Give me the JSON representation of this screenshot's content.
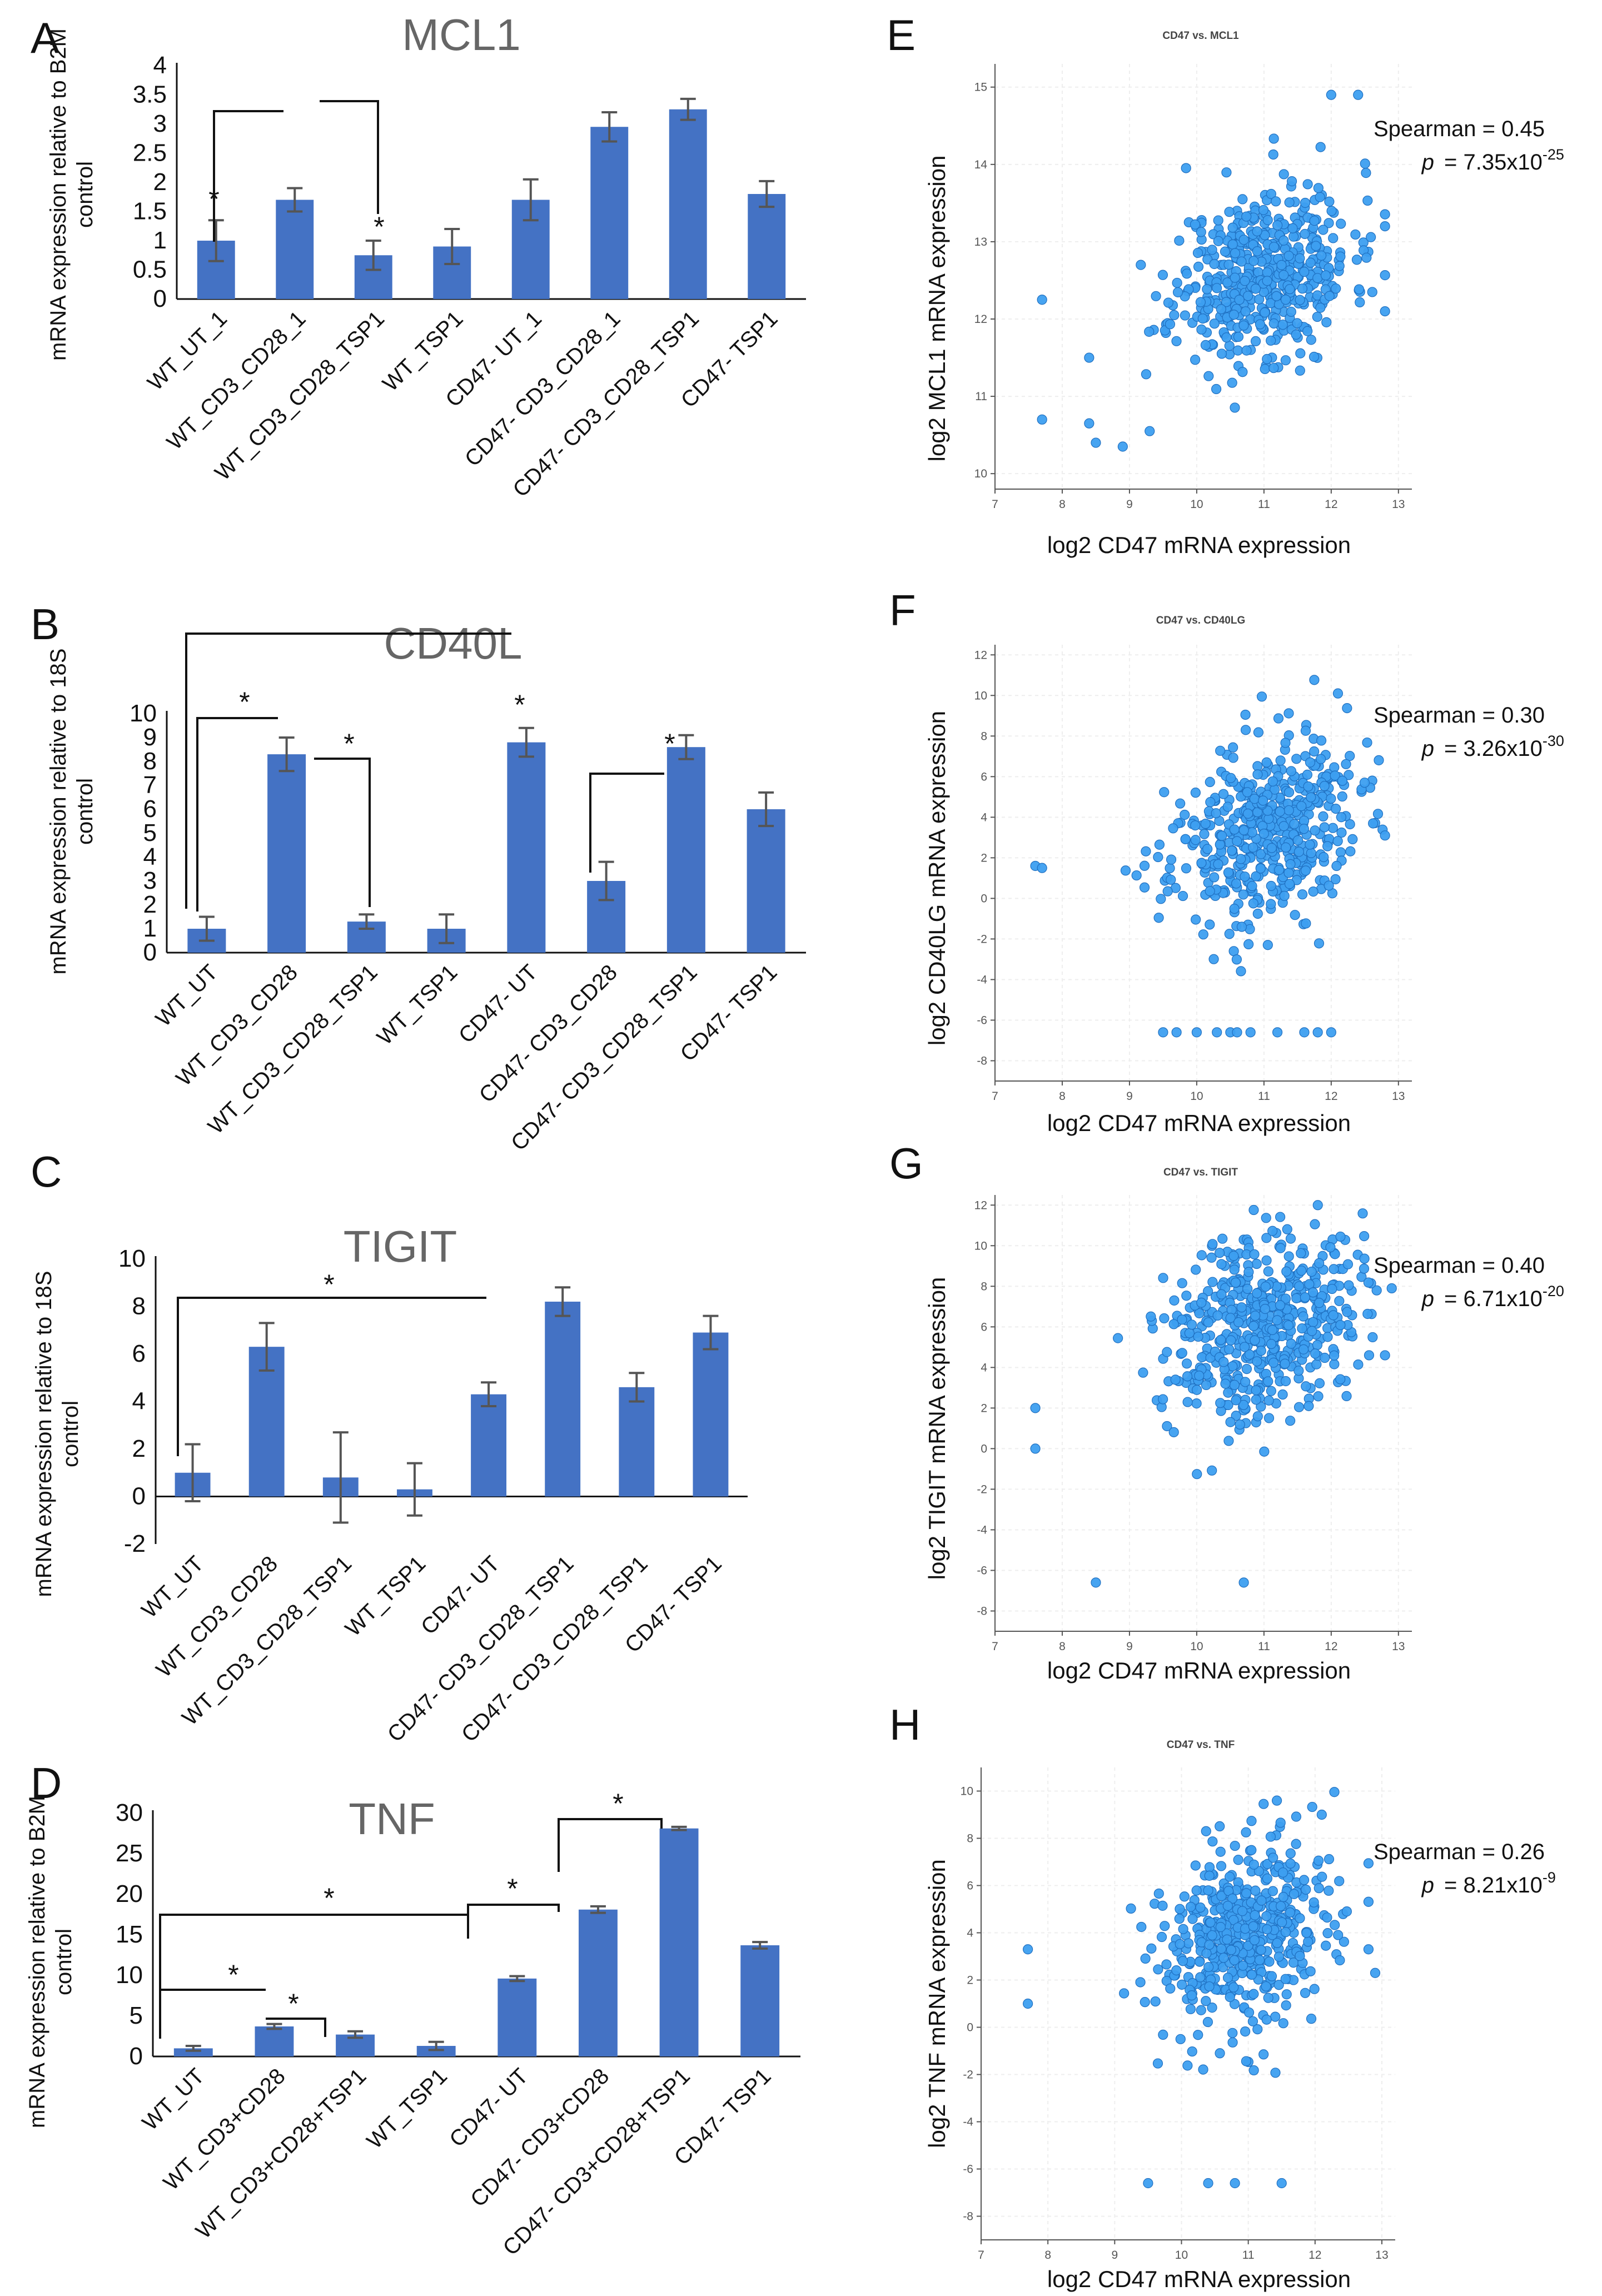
{
  "chart_data": [
    {
      "panel": "A",
      "type": "bar",
      "title": "MCL1",
      "ylabel": "mRNA expression relative to B2M control",
      "ylim": [
        0,
        4
      ],
      "yticks": [
        "0",
        "0.5",
        "1",
        "1.5",
        "2",
        "2.5",
        "3",
        "3.5",
        "4"
      ],
      "categories": [
        "WT_UT_1",
        "WT_CD3_CD28_1",
        "WT_CD3_CD28_TSP1",
        "WT_TSP1",
        "CD47- UT_1",
        "CD47- CD3_CD28_1",
        "CD47- CD3_CD28_TSP1",
        "CD47- TSP1"
      ],
      "values": [
        1.0,
        1.7,
        0.75,
        0.9,
        1.7,
        2.95,
        3.25,
        1.8
      ],
      "errors": [
        0.35,
        0.2,
        0.25,
        0.3,
        0.35,
        0.25,
        0.18,
        0.22
      ],
      "annotations": [
        "*",
        "*"
      ]
    },
    {
      "panel": "B",
      "type": "bar",
      "title": "CD40L",
      "ylabel": "mRNA expression  relative to 18S control",
      "ylim": [
        0,
        10
      ],
      "yticks": [
        "0",
        "1",
        "2",
        "3",
        "4",
        "5",
        "6",
        "7",
        "8",
        "9",
        "10"
      ],
      "categories": [
        "WT_UT",
        "WT_CD3_CD28",
        "WT_CD3_CD28_TSP1",
        "WT_TSP1",
        "CD47- UT",
        "CD47- CD3_CD28",
        "CD47- CD3_CD28_TSP1",
        "CD47- TSP1"
      ],
      "values": [
        1.0,
        8.3,
        1.3,
        1.0,
        8.8,
        3.0,
        8.6,
        6.0
      ],
      "errors": [
        0.5,
        0.7,
        0.3,
        0.6,
        0.6,
        0.8,
        0.5,
        0.7
      ],
      "annotations": [
        "*",
        "*",
        "*",
        "*"
      ]
    },
    {
      "panel": "C",
      "type": "bar",
      "title": "TIGIT",
      "ylabel": "mRNA expression relative to 18S control",
      "ylim": [
        -2,
        10
      ],
      "yticks": [
        "-2",
        "0",
        "2",
        "4",
        "6",
        "8",
        "10"
      ],
      "categories": [
        "WT_UT",
        "WT_CD3_CD28",
        "WT_CD3_CD28_TSP1",
        "WT_TSP1",
        "CD47- UT",
        "CD47- CD3_CD28_TSP1",
        "CD47- CD3_CD28_TSP1",
        "CD47- TSP1"
      ],
      "values": [
        1.0,
        6.3,
        0.8,
        0.3,
        4.3,
        8.2,
        4.6,
        6.9
      ],
      "errors": [
        1.2,
        1.0,
        1.9,
        1.1,
        0.5,
        0.6,
        0.6,
        0.7
      ],
      "annotations": [
        "*"
      ]
    },
    {
      "panel": "D",
      "type": "bar",
      "title": "TNF",
      "ylabel": "mRNA expression relative to B2M control",
      "ylim": [
        0,
        30
      ],
      "yticks": [
        "0",
        "5",
        "10",
        "15",
        "20",
        "25",
        "30"
      ],
      "categories": [
        "WT_UT",
        "WT_CD3+CD28",
        "WT_CD3+CD28+TSP1",
        "WT_TSP1",
        "CD47- UT",
        "CD47- CD3+CD28",
        "CD47- CD3+CD28+TSP1",
        "CD47- TSP1"
      ],
      "values": [
        1.0,
        3.7,
        2.7,
        1.3,
        9.6,
        18.1,
        28.1,
        13.7
      ],
      "errors": [
        0.3,
        0.3,
        0.4,
        0.5,
        0.3,
        0.4,
        0.2,
        0.4
      ],
      "annotations": [
        "*",
        "*",
        "*",
        "*",
        "*"
      ]
    },
    {
      "panel": "E",
      "type": "scatter",
      "title": "CD47 vs. MCL1",
      "xlabel": "log2 CD47 mRNA expression",
      "ylabel": "log2 MCL1 mRNA expression",
      "xlim": [
        7,
        13.2
      ],
      "ylim": [
        9.8,
        15.3
      ],
      "xticks": [
        7,
        8,
        9,
        10,
        11,
        12,
        13
      ],
      "yticks": [
        10,
        11,
        12,
        13,
        14,
        15
      ],
      "stat_label": "Spearman = 0.45",
      "p_prefix": "p",
      "p_value": "= 7.35x10",
      "p_exponent": "-25",
      "center": [
        11.0,
        12.6
      ],
      "spread": [
        0.65,
        0.55
      ],
      "n_points": 520,
      "seed": 11,
      "extra_points": [
        [
          7.7,
          10.7
        ],
        [
          7.7,
          12.25
        ],
        [
          8.4,
          10.65
        ],
        [
          8.5,
          10.4
        ],
        [
          8.9,
          10.35
        ],
        [
          9.3,
          10.55
        ],
        [
          8.4,
          11.5
        ],
        [
          12.0,
          14.9
        ],
        [
          12.4,
          14.9
        ],
        [
          12.8,
          13.2
        ],
        [
          12.8,
          12.1
        ]
      ]
    },
    {
      "panel": "F",
      "type": "scatter",
      "title": "CD47 vs. CD40LG",
      "xlabel": "log2 CD47 mRNA expression",
      "ylabel": "log2 CD40LG mRNA expression",
      "xlim": [
        7,
        13.2
      ],
      "ylim": [
        -9,
        12.5
      ],
      "xticks": [
        7,
        8,
        9,
        10,
        11,
        12,
        13
      ],
      "yticks": [
        -8,
        -6,
        -4,
        -2,
        0,
        2,
        4,
        6,
        8,
        10,
        12
      ],
      "stat_label": "Spearman = 0.30",
      "p_prefix": "p",
      "p_value": "= 3.26x10",
      "p_exponent": "-30",
      "center": [
        11.0,
        3.2
      ],
      "spread": [
        0.7,
        2.2
      ],
      "n_points": 500,
      "seed": 23,
      "extra_points": [
        [
          7.6,
          1.6
        ],
        [
          7.7,
          1.5
        ],
        [
          9.5,
          -6.6
        ],
        [
          9.7,
          -6.6
        ],
        [
          10.0,
          -6.6
        ],
        [
          10.3,
          -6.6
        ],
        [
          10.5,
          -6.6
        ],
        [
          10.6,
          -6.6
        ],
        [
          10.8,
          -6.6
        ],
        [
          11.2,
          -6.6
        ],
        [
          11.6,
          -6.6
        ],
        [
          11.8,
          -6.6
        ],
        [
          12.0,
          -6.6
        ],
        [
          12.1,
          10.1
        ],
        [
          12.8,
          3.1
        ]
      ]
    },
    {
      "panel": "G",
      "type": "scatter",
      "title": "CD47 vs. TIGIT",
      "xlabel": "log2 CD47 mRNA expression",
      "ylabel": "log2 TIGIT mRNA expression",
      "xlim": [
        7,
        13.2
      ],
      "ylim": [
        -9,
        12.5
      ],
      "xticks": [
        7,
        8,
        9,
        10,
        11,
        12,
        13
      ],
      "yticks": [
        -8,
        -6,
        -4,
        -2,
        0,
        2,
        4,
        6,
        8,
        10,
        12
      ],
      "stat_label": "Spearman = 0.40",
      "p_prefix": "p",
      "p_value": "= 6.71x10",
      "p_exponent": "-20",
      "center": [
        11.0,
        6.3
      ],
      "spread": [
        0.7,
        2.3
      ],
      "n_points": 520,
      "seed": 37,
      "extra_points": [
        [
          7.6,
          2.0
        ],
        [
          7.6,
          0.0
        ],
        [
          8.5,
          -6.6
        ],
        [
          10.7,
          -6.6
        ],
        [
          12.8,
          4.6
        ],
        [
          12.9,
          7.9
        ]
      ]
    },
    {
      "panel": "H",
      "type": "scatter",
      "title": "CD47 vs. TNF",
      "xlabel": "log2 CD47 mRNA expression",
      "ylabel": "log2 TNF mRNA expression",
      "xlim": [
        7,
        13.2
      ],
      "ylim": [
        -9,
        11
      ],
      "xticks": [
        7,
        8,
        9,
        10,
        11,
        12,
        13
      ],
      "yticks": [
        -8,
        -6,
        -4,
        -2,
        0,
        2,
        4,
        6,
        8,
        10
      ],
      "stat_label": "Spearman = 0.26",
      "p_prefix": "p",
      "p_value": "= 8.21x10",
      "p_exponent": "-9",
      "center": [
        11.0,
        3.8
      ],
      "spread": [
        0.7,
        2.0
      ],
      "n_points": 500,
      "seed": 53,
      "extra_points": [
        [
          7.7,
          3.3
        ],
        [
          7.7,
          1.0
        ],
        [
          9.5,
          -6.6
        ],
        [
          10.4,
          -6.6
        ],
        [
          10.8,
          -6.6
        ],
        [
          11.5,
          -6.6
        ],
        [
          12.1,
          9.0
        ],
        [
          12.8,
          3.3
        ],
        [
          12.9,
          2.3
        ]
      ]
    }
  ]
}
